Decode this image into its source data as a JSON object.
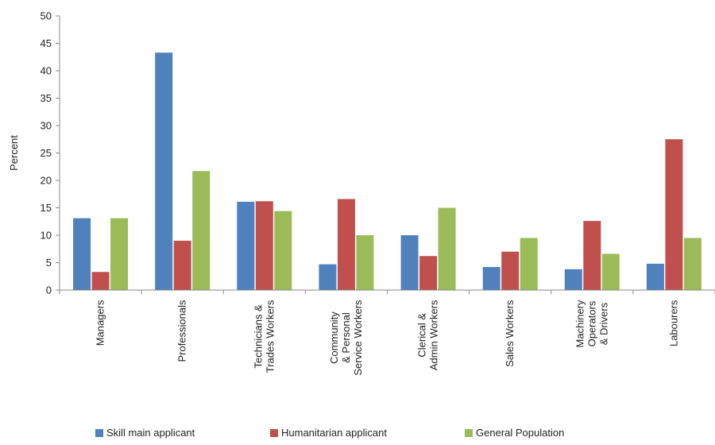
{
  "chart_data": {
    "type": "bar",
    "title": "",
    "xlabel": "",
    "ylabel": "Percent",
    "ylim": [
      0,
      50
    ],
    "yticks": [
      0,
      5,
      10,
      15,
      20,
      25,
      30,
      35,
      40,
      45,
      50
    ],
    "grid": false,
    "legend_position": "bottom",
    "categories": [
      [
        "Managers"
      ],
      [
        "Professionals"
      ],
      [
        "Technicians &",
        "Trades Workers"
      ],
      [
        "Community",
        "& Personal",
        "Service Workers"
      ],
      [
        "Clerical &",
        "Admin Workers"
      ],
      [
        "Sales Workers"
      ],
      [
        "Machinery",
        "Operators",
        "& Drivers"
      ],
      [
        "Labourers"
      ]
    ],
    "series": [
      {
        "name": "Skill main applicant",
        "color": "#4f81bd",
        "values": [
          13.1,
          43.3,
          16.1,
          4.7,
          10.0,
          4.2,
          3.8,
          4.8
        ]
      },
      {
        "name": "Humanitarian applicant",
        "color": "#c0504d",
        "values": [
          3.3,
          9.0,
          16.2,
          16.6,
          6.2,
          7.0,
          12.6,
          27.5
        ]
      },
      {
        "name": "General Population",
        "color": "#9bbb59",
        "values": [
          13.1,
          21.7,
          14.4,
          10.0,
          15.0,
          9.5,
          6.6,
          9.5
        ]
      }
    ]
  }
}
